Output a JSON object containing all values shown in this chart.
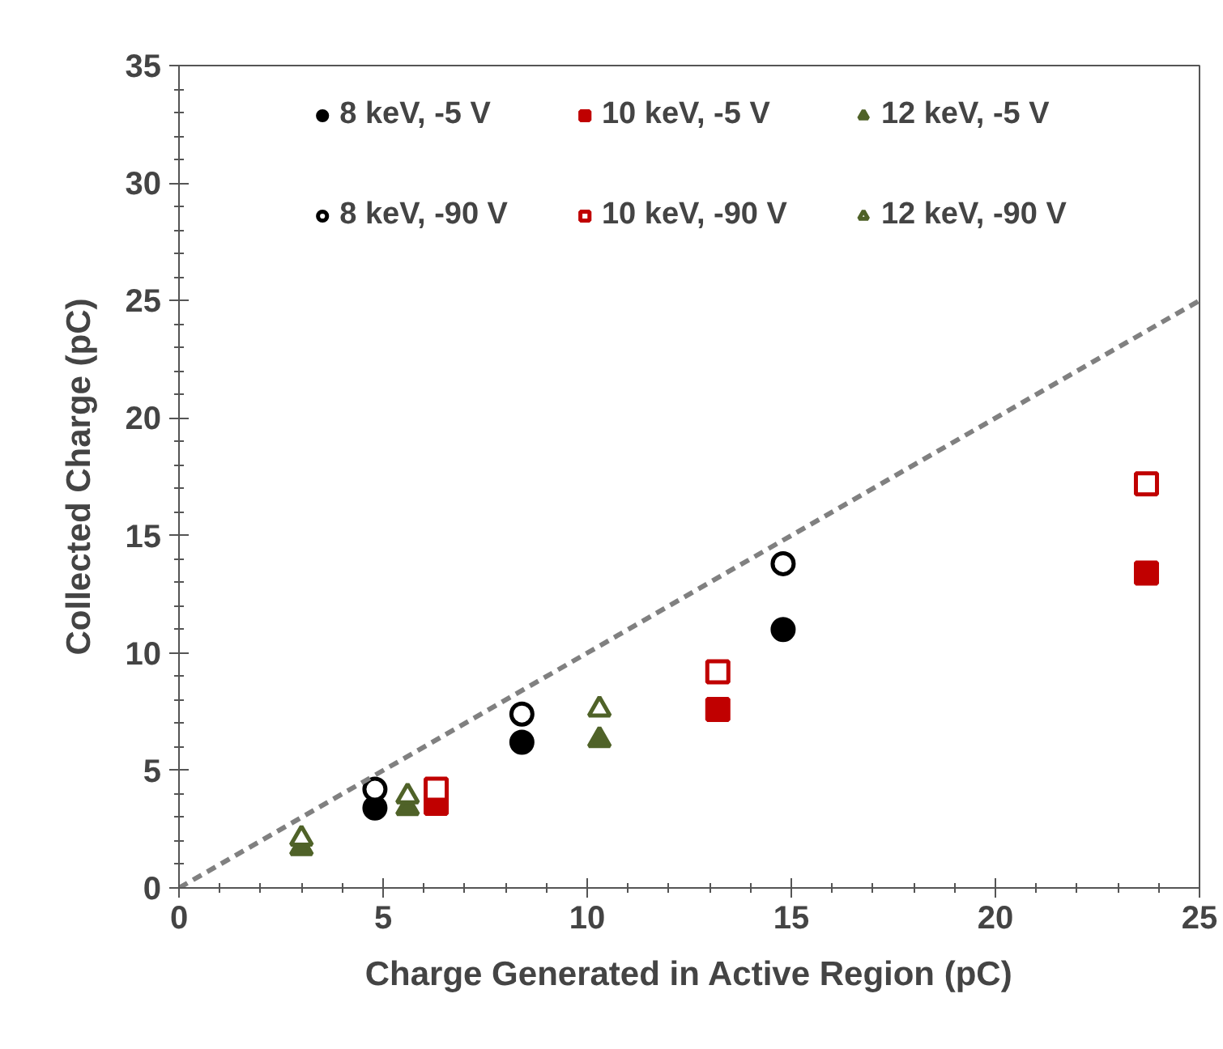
{
  "chart_data": {
    "type": "scatter",
    "xlabel": "Charge Generated in Active Region (pC)",
    "ylabel": "Collected Charge (pC)",
    "xlim": [
      0,
      25
    ],
    "ylim": [
      0,
      35
    ],
    "xticks": [
      0,
      5,
      10,
      15,
      20,
      25
    ],
    "yticks": [
      0,
      5,
      10,
      15,
      20,
      25,
      30,
      35
    ],
    "grid": false,
    "legend": "top",
    "series": [
      {
        "name": "8 keV, -5 V",
        "color": "#000000",
        "marker": "circle",
        "x": [
          4.8,
          8.4,
          14.8
        ],
        "values": [
          3.4,
          6.2,
          11.0
        ]
      },
      {
        "name": "10 keV, -5 V",
        "color": "#c00000",
        "marker": "square",
        "x": [
          6.3,
          13.2,
          23.7
        ],
        "values": [
          3.6,
          7.6,
          13.4
        ]
      },
      {
        "name": "12 keV, -5 V",
        "color": "#4f6228",
        "marker": "triangle",
        "x": [
          3.0,
          5.6,
          10.3
        ],
        "values": [
          1.7,
          3.4,
          6.3
        ]
      },
      {
        "name": "8 keV, -90 V",
        "color": "#000000",
        "marker": "circle",
        "x": [
          4.8,
          8.4,
          14.8
        ],
        "values": [
          4.2,
          7.4,
          13.8
        ]
      },
      {
        "name": "10 keV, -90 V",
        "color": "#c00000",
        "marker": "square",
        "x": [
          6.3,
          13.2,
          23.7
        ],
        "values": [
          4.2,
          9.2,
          17.2
        ]
      },
      {
        "name": "12 keV, -90 V",
        "color": "#4f6228",
        "marker": "triangle",
        "x": [
          3.0,
          5.6,
          10.3
        ],
        "values": [
          2.1,
          3.9,
          7.6
        ]
      },
      {
        "type": "line",
        "color": "#808080",
        "line_style": "dashed",
        "x": [
          0,
          25
        ],
        "values": [
          0,
          25
        ]
      }
    ]
  }
}
